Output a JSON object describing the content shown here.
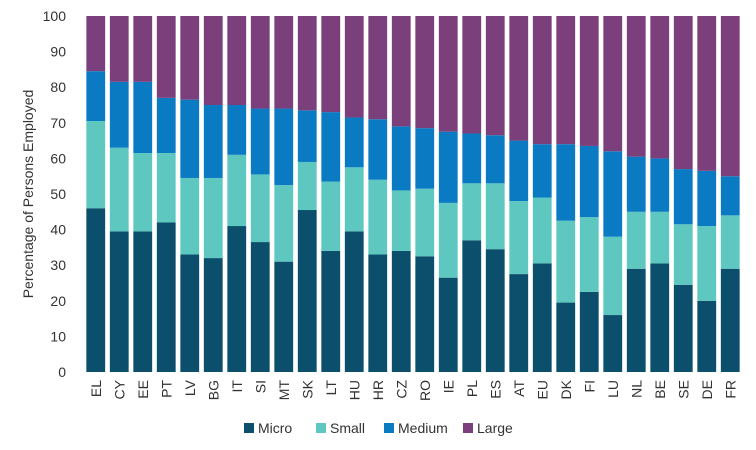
{
  "chart_data": {
    "type": "bar",
    "stacked": true,
    "title": "",
    "xlabel": "",
    "ylabel": "Percentage of Persons Employed",
    "ylim": [
      0,
      100
    ],
    "yticks": [
      0,
      10,
      20,
      30,
      40,
      50,
      60,
      70,
      80,
      90,
      100
    ],
    "grid": false,
    "legend_position": "bottom",
    "categories": [
      "EL",
      "CY",
      "EE",
      "PT",
      "LV",
      "BG",
      "IT",
      "SI",
      "MT",
      "SK",
      "LT",
      "HU",
      "HR",
      "CZ",
      "RO",
      "IE",
      "PL",
      "ES",
      "AT",
      "EU",
      "DK",
      "FI",
      "LU",
      "NL",
      "BE",
      "SE",
      "DE",
      "FR"
    ],
    "series": [
      {
        "name": "Micro",
        "color": "#0b4f6c",
        "values": [
          46,
          39.5,
          39.5,
          42,
          33,
          32,
          41,
          36.5,
          31,
          45.5,
          34,
          39.5,
          33,
          34,
          32.5,
          26.5,
          37,
          34.5,
          27.5,
          30.5,
          19.5,
          22.5,
          16,
          29,
          30.5,
          24.5,
          20,
          29
        ]
      },
      {
        "name": "Small",
        "color": "#5ec8c0",
        "values": [
          24.5,
          23.5,
          22,
          19.5,
          21.5,
          22.5,
          20,
          19,
          21.5,
          13.5,
          19.5,
          18,
          21,
          17,
          19,
          21,
          16,
          18.5,
          20.5,
          18.5,
          23,
          21,
          22,
          16,
          14.5,
          17,
          21,
          15
        ]
      },
      {
        "name": "Medium",
        "color": "#0a7bc2",
        "values": [
          14,
          18.5,
          20,
          15.5,
          22,
          20.5,
          14,
          18.5,
          21.5,
          14.5,
          19.5,
          14,
          17,
          18,
          17,
          20,
          14,
          13.5,
          17,
          15,
          21.5,
          20,
          24,
          15.5,
          15,
          15.5,
          15.5,
          11
        ]
      },
      {
        "name": "Large",
        "color": "#7b3f7c",
        "values": [
          15.5,
          18.5,
          18.5,
          23,
          23.5,
          25,
          25,
          26,
          26,
          26.5,
          27,
          28.5,
          29,
          31,
          31.5,
          32.5,
          33,
          33.5,
          35,
          36,
          36,
          36.5,
          38,
          39.5,
          40,
          43,
          43.5,
          45
        ]
      }
    ]
  }
}
